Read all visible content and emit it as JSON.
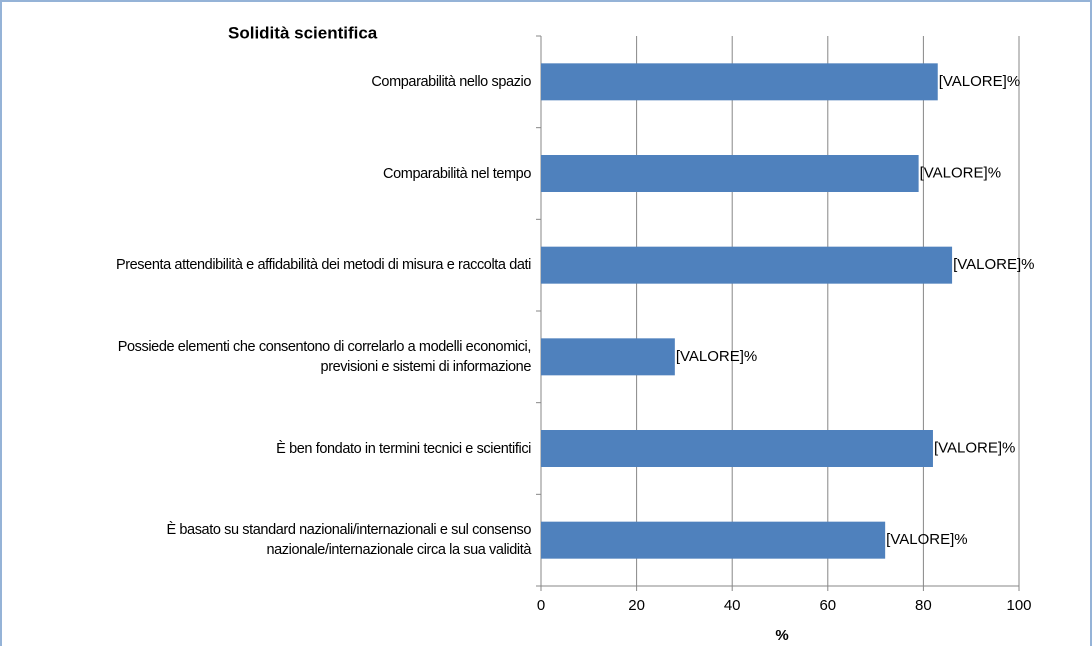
{
  "chart_data": {
    "type": "hbar",
    "title": "Solidità scientifica",
    "x_label": "%",
    "categories": [
      "Comparabilità nello spazio",
      "Comparabilità nel tempo",
      "Presenta attendibilità e affidabilità dei metodi di misura e raccolta dati",
      "Possiede elementi che consentono di correlarlo a modelli economici, previsioni e sistemi di informazione",
      "È ben fondato in termini tecnici e scientifici",
      "È basato su standard nazionali/internazionali e sul consenso nazionale/internazionale circa la sua validità"
    ],
    "values": [
      83,
      79,
      86,
      28,
      82,
      72
    ],
    "value_labels": [
      "[VALORE]%",
      "[VALORE]%",
      "[VALORE]%",
      "[VALORE]%",
      "[VALORE]%",
      "[VALORE]%"
    ],
    "color": "#4f81bd",
    "xlim": [
      0,
      100
    ],
    "xticks": [
      0,
      20,
      40,
      60,
      80,
      100
    ],
    "grid": true
  }
}
